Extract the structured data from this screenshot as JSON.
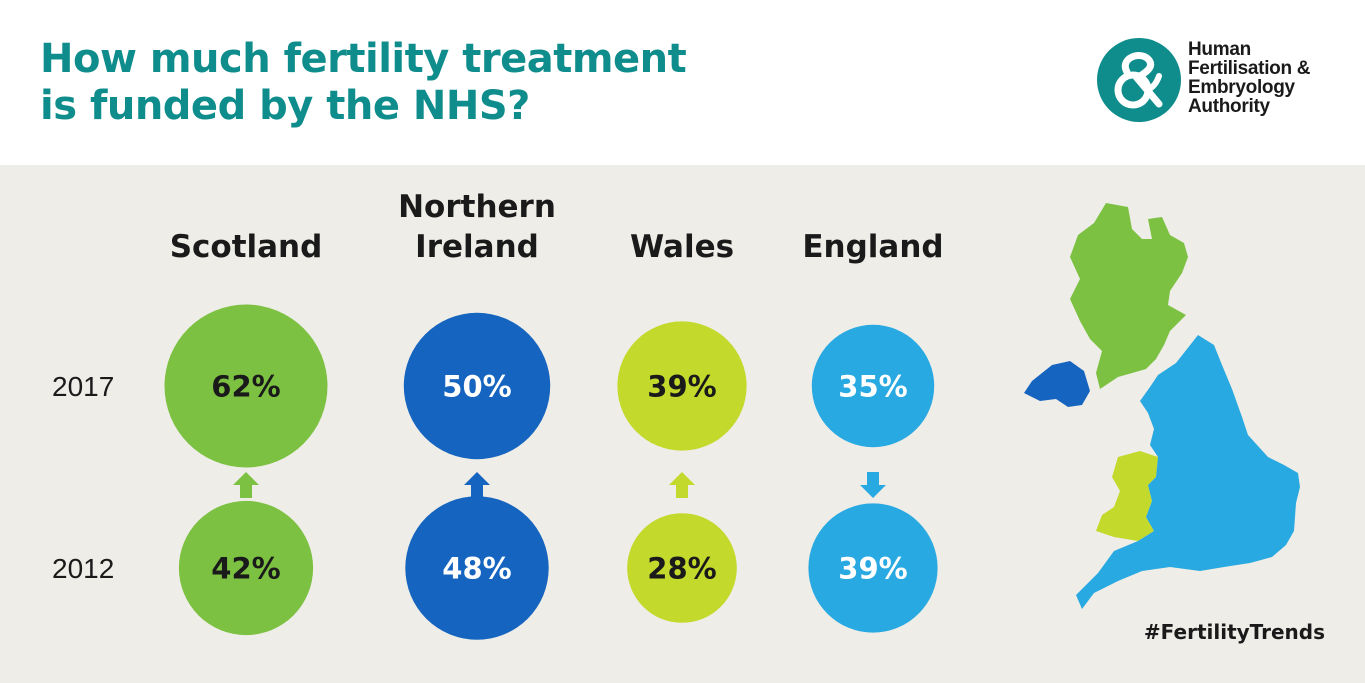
{
  "header": {
    "title_line1": "How much fertility treatment",
    "title_line2": "is funded by the NHS?"
  },
  "logo": {
    "line1": "Human",
    "line2": "Fertilisation &",
    "line3": "Embryology",
    "line4": "Authority",
    "icon": "ampersand-logo-icon",
    "color": "#0f8c8c"
  },
  "hashtag": "#FertilityTrends",
  "colors": {
    "Scotland": "#7cc142",
    "Northern Ireland": "#1565c0",
    "Wales": "#c3d92b",
    "England": "#29a9e1",
    "background": "#efede7",
    "title": "#0f8c8c"
  },
  "chart_data": {
    "type": "bubble",
    "title": "How much fertility treatment is funded by the NHS?",
    "categories": [
      "Scotland",
      "Northern Ireland",
      "Wales",
      "England"
    ],
    "category_labels": [
      [
        "Scotland"
      ],
      [
        "Northern",
        "Ireland"
      ],
      [
        "Wales"
      ],
      [
        "England"
      ]
    ],
    "years": [
      "2017",
      "2012"
    ],
    "series": [
      {
        "name": "2017",
        "values": [
          62,
          50,
          39,
          35
        ],
        "labels": [
          "62%",
          "50%",
          "39%",
          "35%"
        ]
      },
      {
        "name": "2012",
        "values": [
          42,
          48,
          28,
          39
        ],
        "labels": [
          "42%",
          "48%",
          "28%",
          "39%"
        ]
      }
    ],
    "change_direction": [
      "up",
      "up",
      "up",
      "down"
    ],
    "unit": "%"
  }
}
